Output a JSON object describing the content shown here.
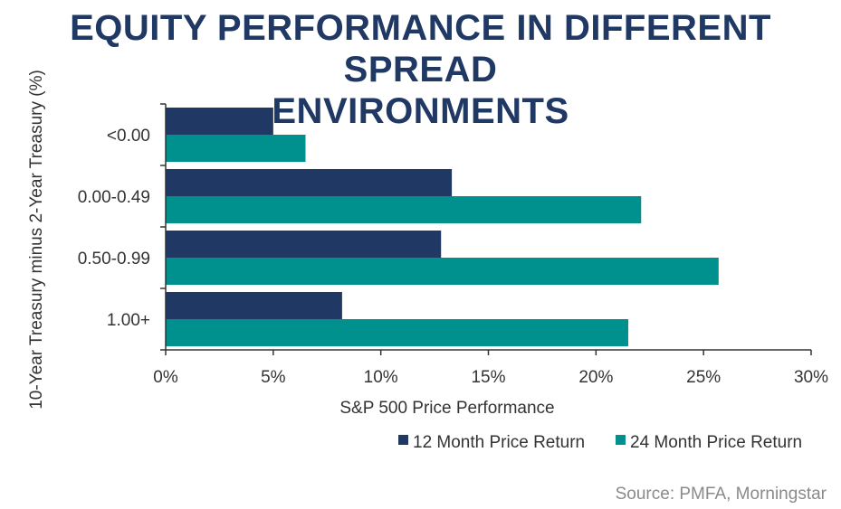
{
  "title_lines": [
    "EQUITY PERFORMANCE IN DIFFERENT SPREAD",
    "ENVIRONMENTS"
  ],
  "source": "Source:  PMFA, Morningstar",
  "colors": {
    "title": "#1f3864",
    "series_12": "#1f3864",
    "series_24": "#00918f",
    "axis": "#333333",
    "source": "#8a8a8a"
  },
  "chart_data": {
    "type": "bar",
    "orientation": "horizontal",
    "title": "EQUITY PERFORMANCE IN DIFFERENT SPREAD ENVIRONMENTS",
    "xlabel": "S&P 500 Price Performance",
    "ylabel": "10-Year Treasury minus 2-Year Treasury (%)",
    "categories": [
      "<0.00",
      "0.00-0.49",
      "0.50-0.99",
      "1.00+"
    ],
    "xlim": [
      0,
      30
    ],
    "xticks": [
      "0%",
      "5%",
      "10%",
      "15%",
      "20%",
      "25%",
      "30%"
    ],
    "xtick_values": [
      0,
      5,
      10,
      15,
      20,
      25,
      30
    ],
    "grid": false,
    "legend_position": "bottom-right",
    "series": [
      {
        "name": "12 Month Price Return",
        "values": [
          5.0,
          13.3,
          12.8,
          8.2
        ]
      },
      {
        "name": "24 Month Price Return",
        "values": [
          6.5,
          22.1,
          25.7,
          21.5
        ]
      }
    ]
  }
}
